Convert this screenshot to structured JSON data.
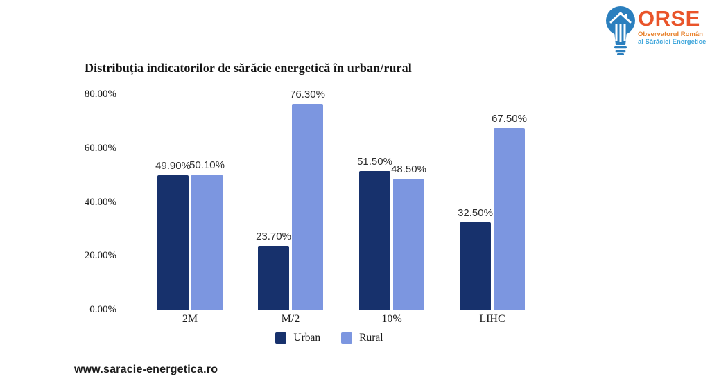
{
  "logo": {
    "name": "ORSE",
    "subtitle_line1": "Observatorul Român",
    "subtitle_line2": "al Sărăciei Energetice",
    "name_color": "#E9542A",
    "subtitle1_color": "#E8822D",
    "subtitle2_color": "#3FA6DB",
    "bulb_color": "#2B7FBE"
  },
  "chart_data": {
    "type": "bar",
    "title": "Distribuția indicatorilor de sărăcie energetică în urban/rural",
    "categories": [
      "2M",
      "M/2",
      "10%",
      "LIHC"
    ],
    "series": [
      {
        "name": "Urban",
        "color": "#17316C",
        "values": [
          49.9,
          23.7,
          51.5,
          32.5
        ],
        "labels": [
          "49.90%",
          "23.70%",
          "51.50%",
          "32.50%"
        ]
      },
      {
        "name": "Rural",
        "color": "#7C96E0",
        "values": [
          50.1,
          76.3,
          48.5,
          67.5
        ],
        "labels": [
          "50.10%",
          "76.30%",
          "48.50%",
          "67.50%"
        ]
      }
    ],
    "ylim": [
      0,
      80
    ],
    "yticks": [
      {
        "value": 0,
        "label": "0.00%"
      },
      {
        "value": 20,
        "label": "20.00%"
      },
      {
        "value": 40,
        "label": "40.00%"
      },
      {
        "value": 60,
        "label": "60.00%"
      },
      {
        "value": 80,
        "label": "80.00%"
      }
    ],
    "grid": false,
    "legend_position": "bottom"
  },
  "footer": {
    "url": "www.saracie-energetica.ro"
  }
}
